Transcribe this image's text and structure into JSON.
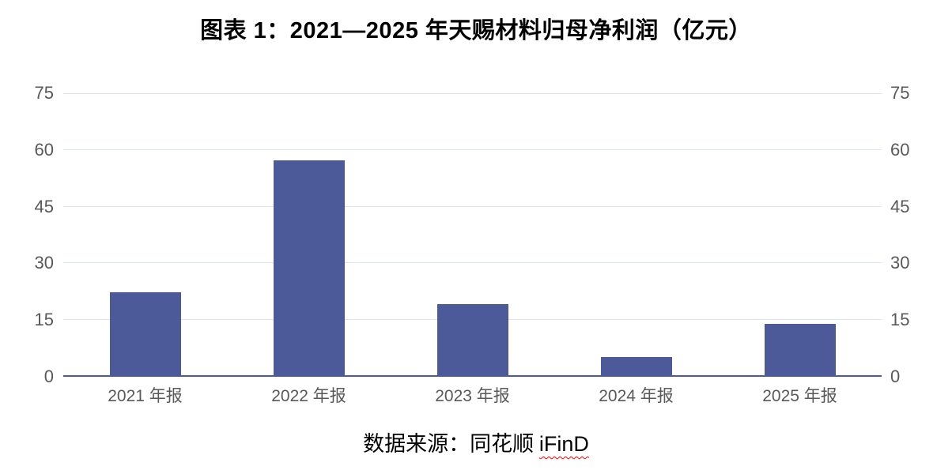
{
  "page": {
    "title": "图表 1：2021—2025 年天赐材料归母净利润（亿元）",
    "source_prefix": "数据来源：同花顺 ",
    "source_highlight": "iFinD"
  },
  "colors": {
    "bar": "#4D5A9A",
    "gridline": "#DCE3F1",
    "baseline": "#4C5AA5",
    "tick_text": "#595959",
    "title_text": "#000000",
    "squiggle": "#FF0000"
  },
  "chart_data": {
    "type": "bar",
    "title": "图表 1：2021—2025 年天赐材料归母净利润（亿元）",
    "categories": [
      "2021 年报",
      "2022 年报",
      "2023 年报",
      "2024 年报",
      "2025 年报"
    ],
    "values": [
      22.1,
      57.1,
      18.9,
      4.8,
      13.7
    ],
    "unit": "亿元",
    "xlabel": "",
    "ylabel": "",
    "ylim": [
      0,
      75
    ],
    "yticks": [
      0,
      15,
      30,
      45,
      60,
      75
    ],
    "y_axis_sides": [
      "left",
      "right"
    ],
    "grid": true,
    "legend_position": "none",
    "bar_color": "#4D5A9A",
    "source_caption": "数据来源：同花顺 iFinD"
  }
}
